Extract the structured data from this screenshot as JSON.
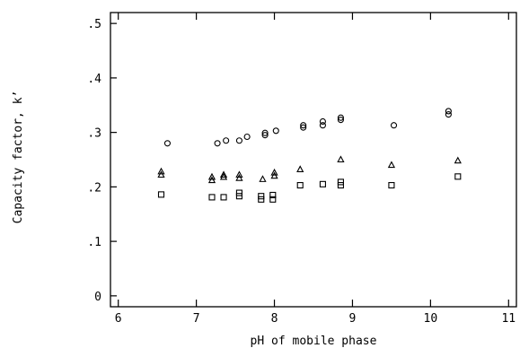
{
  "chart_data": {
    "type": "scatter",
    "title": "",
    "xlabel": "pH of mobile phase",
    "ylabel": "Capacity factor, k’",
    "xlim": [
      5.9,
      11.1
    ],
    "ylim": [
      -0.02,
      0.52
    ],
    "xticks": [
      6,
      7,
      8,
      9,
      10,
      11
    ],
    "xtick_labels": [
      "6",
      "7",
      "8",
      "9",
      "10",
      "11"
    ],
    "yticks": [
      0,
      0.1,
      0.2,
      0.3,
      0.4,
      0.5
    ],
    "ytick_labels": [
      "0",
      ".1",
      ".2",
      ".3",
      ".4",
      ".5"
    ],
    "grid": false,
    "legend": false,
    "series": [
      {
        "marker": "circle",
        "points": [
          [
            6.63,
            0.28
          ],
          [
            7.27,
            0.28
          ],
          [
            7.38,
            0.285
          ],
          [
            7.55,
            0.285
          ],
          [
            7.65,
            0.292
          ],
          [
            7.88,
            0.295
          ],
          [
            7.88,
            0.299
          ],
          [
            8.02,
            0.303
          ],
          [
            8.37,
            0.309
          ],
          [
            8.37,
            0.313
          ],
          [
            8.62,
            0.313
          ],
          [
            8.62,
            0.32
          ],
          [
            8.85,
            0.323
          ],
          [
            8.85,
            0.327
          ],
          [
            9.53,
            0.313
          ],
          [
            10.23,
            0.333
          ],
          [
            10.23,
            0.339
          ]
        ]
      },
      {
        "marker": "triangle",
        "points": [
          [
            6.55,
            0.222
          ],
          [
            6.55,
            0.228
          ],
          [
            7.2,
            0.212
          ],
          [
            7.2,
            0.218
          ],
          [
            7.35,
            0.218
          ],
          [
            7.35,
            0.222
          ],
          [
            7.55,
            0.216
          ],
          [
            7.55,
            0.222
          ],
          [
            7.85,
            0.214
          ],
          [
            8.0,
            0.22
          ],
          [
            8.0,
            0.226
          ],
          [
            8.33,
            0.232
          ],
          [
            8.85,
            0.25
          ],
          [
            9.5,
            0.24
          ],
          [
            10.35,
            0.248
          ]
        ]
      },
      {
        "marker": "square",
        "points": [
          [
            6.55,
            0.186
          ],
          [
            7.2,
            0.181
          ],
          [
            7.35,
            0.181
          ],
          [
            7.55,
            0.183
          ],
          [
            7.55,
            0.189
          ],
          [
            7.83,
            0.177
          ],
          [
            7.83,
            0.183
          ],
          [
            7.98,
            0.177
          ],
          [
            7.98,
            0.185
          ],
          [
            8.33,
            0.203
          ],
          [
            8.62,
            0.205
          ],
          [
            8.85,
            0.203
          ],
          [
            8.85,
            0.209
          ],
          [
            9.5,
            0.203
          ],
          [
            10.35,
            0.219
          ]
        ]
      }
    ]
  }
}
